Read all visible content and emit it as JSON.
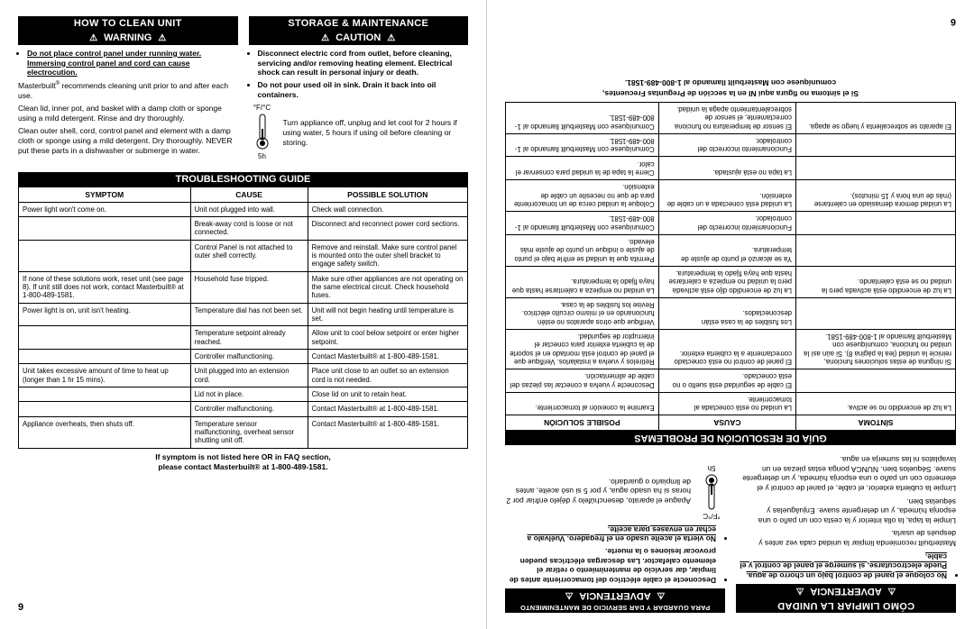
{
  "leftPage": {
    "pageNum": "9",
    "howToClean": {
      "header": "HOW TO CLEAN UNIT",
      "warningBar": "WARNING",
      "bullets": [
        "Do not place control panel under running water. Immersing control panel and cord can cause electrocution."
      ],
      "para1a": "Masterbuilt",
      "para1b": " recommends cleaning unit prior to and after each use.",
      "para2": "Clean lid, inner pot, and basket with a damp cloth or sponge using a mild detergent.  Rinse and dry thoroughly.",
      "para3": "Clean outer shell, cord, control panel and element with a damp cloth or sponge using a mild detergent.  Dry thoroughly.  NEVER put these parts in a dishwasher or submerge in water."
    },
    "storage": {
      "header": "STORAGE & MAINTENANCE",
      "cautionBar": "CAUTION",
      "bullets": [
        "Disconnect electric cord from outlet, before cleaning, servicing and/or removing heating element. Electrical shock can result in personal injury or death.",
        "Do not pour used oil in sink. Drain it back into oil containers."
      ],
      "thermoLabel": "°F/°C",
      "thermoBottom": "5h",
      "thermoText": "Turn appliance off, unplug and let cool for 2 hours if using water, 5 hours if using oil before cleaning or storing."
    },
    "troubleshooting": {
      "header": "TROUBLESHOOTING GUIDE",
      "columns": [
        "SYMPTOM",
        "CAUSE",
        "POSSIBLE SOLUTION"
      ],
      "rows": [
        [
          "Power light won't come on.",
          "Unit not plugged into wall.",
          "Check wall connection."
        ],
        [
          "",
          "Break-away cord is loose or not connected.",
          "Disconnect and reconnect power cord sections."
        ],
        [
          "",
          "Control Panel is not attached to outer shell correctly.",
          "Remove and reinstall.  Make sure control panel is mounted onto the outer shell bracket to engage safety switch."
        ],
        [
          "If none of these solutions work, reset unit (see page 8).  If unit still does not work, contact Masterbuilt® at 1-800-489-1581.",
          "Household fuse tripped.",
          "Make sure other appliances are not operating on the same electrical circuit.  Check household fuses."
        ],
        [
          "Power light is on, unit isn't heating.",
          "Temperature dial has not been set.",
          "Unit will not begin heating until temperature is set."
        ],
        [
          "",
          "Temperature setpoint already reached.",
          "Allow unit to cool below setpoint or enter higher setpoint."
        ],
        [
          "",
          "Controller malfunctioning.",
          "Contact Masterbuilt® at 1-800-489-1581."
        ],
        [
          "Unit takes excessive amount of time to heat up (longer than 1 hr 15 mins).",
          "Unit plugged into an extension cord.",
          "Place unit close to an outlet so an extension cord is not needed."
        ],
        [
          "",
          "Lid not in place.",
          "Close lid on unit to retain heat."
        ],
        [
          "",
          "Controller malfunctioning.",
          "Contact Masterbuilt® at 1-800-489-1581."
        ],
        [
          "Appliance overheats, then shuts off.",
          "Temperature sensor malfunctioning, overheat sensor shutting unit off.",
          "Contact Masterbuilt® at 1-800-489-1581."
        ]
      ],
      "footerNote1": "If symptom is not listed here OR in FAQ section,",
      "footerNote2": "please contact Masterbuilt® at 1-800-489-1581."
    }
  },
  "rightPage": {
    "pageNum": "6",
    "howToClean": {
      "header": "CÓMO LIMPIAR LA UNIDAD",
      "warningBar": "ADVERTENCIA",
      "bullets": [
        "No coloque el panel de control bajo un chorro de agua. Puede electrocutarse, si sumerge el panel de control y el cable."
      ],
      "para1": "Masterbuilt recomienda limpiar la unidad cada vez antes y después de usarla.",
      "para2": "Limpie la tapa, la olla interior y la cesta con un paño o una esponja húmeda, y un detergente suave. Enjuáguelas y séquelas bien.",
      "para3": "Limpie la cubierta exterior, el cable, el panel de control y el elemento con un paño o una esponja húmeda, y un detergente suave. Séquelos bien. NUNCA ponga estas piezas en un lavaplatos ni las sumerja en agua."
    },
    "storage": {
      "smallHeader": "PARA GUARDAR Y DAR SERVICIO DE MANTENIMIENTO",
      "cautionBar": "ADVERTENCIA",
      "bullets": [
        "Desconecte el cable eléctrico del tomacorriente antes de limpiar, dar servicio de mantenimiento o retirar el elemento calefactor. Las descargas eléctricas pueden provocar lesiones o la muerte.",
        "No vierta el aceite usado en el fregadero. Vuélvalo a echar en envases para aceite."
      ],
      "thermoLabel": "°F/°C",
      "thermoBottom": "5h",
      "thermoText": "Apague el aparato, desenchúfelo y déjelo enfriar por 2 horas si ha usado agua, y por 5 si usó aceite, antes de limpiarlo o guardarlo."
    },
    "troubleshooting": {
      "header": "GUÍA DE RESOLUCIÓN DE  PROBLEMAS",
      "columns": [
        "SÍNTOMA",
        "CAUSA",
        "POSIBLE SOLUCIÓN"
      ],
      "rows": [
        [
          "La luz de encendido no se activa.",
          "La unidad no está conectada al tomacorriente.",
          "Examine la conexión al tomacorriente."
        ],
        [
          "",
          "El cable de seguridad está suelto o no está conectado.",
          "Desconecte y vuelva a conectar las piezas del cable de alimentación."
        ],
        [
          "Si ninguna de estas soluciones funciona, reinicie la unidad (lea la página 8). Si aún así la unidad no funciona, comuníquese con Masterbuilt llamando al 1-800-489-1581.",
          "El panel de control no está conectado correctamente a la cubierta exterior.",
          "Retírelos y vuelva a instalarlos. Verifique que el panel de control está montado en el soporte de la cubierta exterior para conectar el interruptor de seguridad."
        ],
        [
          "",
          "Los fusibles de la casa están desconectados.",
          "Verifique que otros aparatos no estén funcionando en el mismo circuito eléctrico. Revise los fusibles de la casa."
        ],
        [
          "La luz de encendido está activada pero la unidad no se está calentando.",
          "La luz de encendido dijo está activada pero la unidad no empieza a calentarse hasta que haya fijado la temperatura.",
          "La unidad no empieza a calentarse hasta que haya fijado la temperatura."
        ],
        [
          "",
          "Ya se alcanzó el punto de ajuste de temperatura.",
          "Permita que la unidad se enfríe bajo el punto de ajuste o indique un punto de ajuste más elevado."
        ],
        [
          "",
          "Funcionamiento incorrecto del controlador.",
          "Comuníquese con Masterbuilt llamando al 1-800-489-1581."
        ],
        [
          "La unidad demora demasiado en calentarse (más de una hora y 15 minutos).",
          "La unidad está conectada a un cable de extensión.",
          "Coloque la unidad cerca de un tomacorriente para de que no necesite un cable de extensión."
        ],
        [
          "",
          "La tapa no está ajustada.",
          "Cierre la tapa de la unidad para conservar el calor."
        ],
        [
          "",
          "Funcionamiento incorrecto del controlador.",
          "Comuníquese con Masterbuilt llamando al 1-800-489-1581."
        ],
        [
          "El aparato se sobrecalienta y luego se apaga.",
          "El sensor de temperatura no funciona correctamente, el sensor de sobrecalentamiento apaga la unidad.",
          "Comuníquese con Masterbuilt llamando al 1-800-489-1581."
        ]
      ],
      "footerNote1": "Si el síntoma no figura aquí NI en la sección de Preguntas Frecuentes,",
      "footerNote2": "comuníquese con Masterbuilt llamando al 1-800-489-1581."
    }
  }
}
